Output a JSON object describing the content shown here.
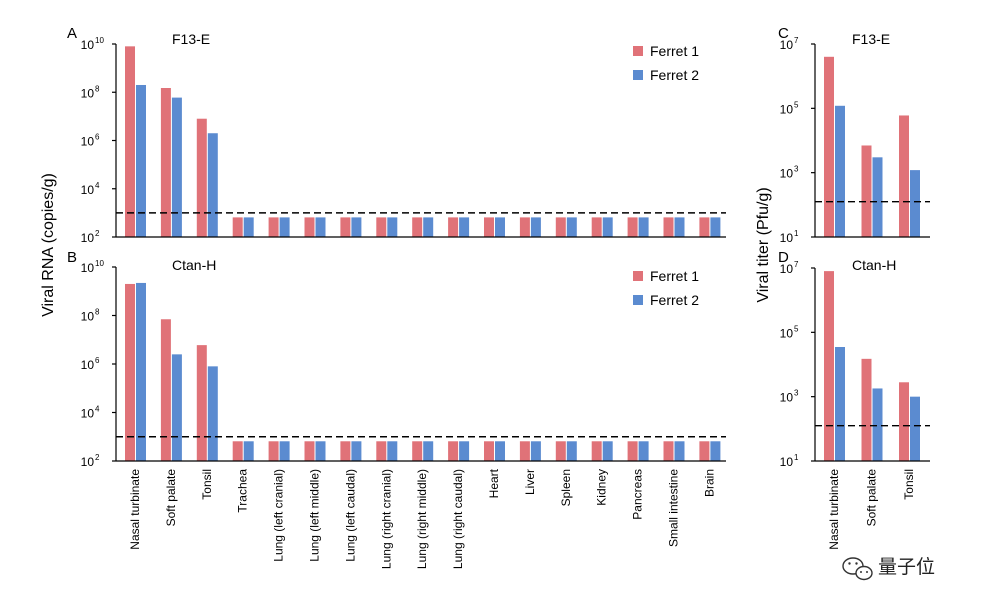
{
  "watermark": {
    "text": "量子位",
    "icon": "wechat-icon"
  },
  "colors": {
    "ferret1": "#e07278",
    "ferret2": "#5b8bd0"
  },
  "left_ylabel": "Viral RNA (copies/g)",
  "right_ylabel": "Viral titer (Pfu/g)",
  "chart_data": [
    {
      "panel": "A",
      "title": "F13-E",
      "type": "bar",
      "scale": "log10",
      "ylim": [
        100,
        10000000000
      ],
      "yticks": [
        {
          "base": "10",
          "exp": "10"
        },
        {
          "base": "10",
          "exp": "8"
        },
        {
          "base": "10",
          "exp": "6"
        },
        {
          "base": "10",
          "exp": "4"
        },
        {
          "base": "10",
          "exp": "2"
        }
      ],
      "ytick_values": [
        10000000000,
        100000000,
        1000000,
        10000,
        100
      ],
      "detection_limit": 1000,
      "legend_position": "top-right",
      "categories": [
        "Nasal turbinate",
        "Soft palate",
        "Tonsil",
        "Trachea",
        "Lung (left cranial)",
        "Lung (left middle)",
        "Lung (left caudal)",
        "Lung (right cranial)",
        "Lung (right middle)",
        "Lung (right caudal)",
        "Heart",
        "Liver",
        "Spleen",
        "Kidney",
        "Pancreas",
        "Small intestine",
        "Brain"
      ],
      "series": [
        {
          "name": "Ferret 1",
          "values": [
            8000000000,
            150000000,
            8000000,
            650,
            650,
            650,
            650,
            650,
            650,
            650,
            650,
            650,
            650,
            650,
            650,
            650,
            650
          ]
        },
        {
          "name": "Ferret 2",
          "values": [
            200000000,
            60000000,
            2000000,
            650,
            650,
            650,
            650,
            650,
            650,
            650,
            650,
            650,
            650,
            650,
            650,
            650,
            650
          ]
        }
      ]
    },
    {
      "panel": "B",
      "title": "Ctan-H",
      "type": "bar",
      "scale": "log10",
      "ylim": [
        100,
        10000000000
      ],
      "yticks": [
        {
          "base": "10",
          "exp": "10"
        },
        {
          "base": "10",
          "exp": "8"
        },
        {
          "base": "10",
          "exp": "6"
        },
        {
          "base": "10",
          "exp": "4"
        },
        {
          "base": "10",
          "exp": "2"
        }
      ],
      "ytick_values": [
        10000000000,
        100000000,
        1000000,
        10000,
        100
      ],
      "detection_limit": 1000,
      "legend_position": "top-right",
      "categories": [
        "Nasal turbinate",
        "Soft palate",
        "Tonsil",
        "Trachea",
        "Lung (left cranial)",
        "Lung (left middle)",
        "Lung (left caudal)",
        "Lung (right cranial)",
        "Lung (right middle)",
        "Lung (right caudal)",
        "Heart",
        "Liver",
        "Spleen",
        "Kidney",
        "Pancreas",
        "Small intestine",
        "Brain"
      ],
      "series": [
        {
          "name": "Ferret 1",
          "values": [
            2000000000,
            70000000,
            6000000,
            650,
            650,
            650,
            650,
            650,
            650,
            650,
            650,
            650,
            650,
            650,
            650,
            650,
            650
          ]
        },
        {
          "name": "Ferret 2",
          "values": [
            2200000000,
            2500000,
            800000,
            650,
            650,
            650,
            650,
            650,
            650,
            650,
            650,
            650,
            650,
            650,
            650,
            650,
            650
          ]
        }
      ]
    },
    {
      "panel": "C",
      "title": "F13-E",
      "type": "bar",
      "scale": "log10",
      "ylim": [
        10,
        10000000
      ],
      "yticks": [
        {
          "base": "10",
          "exp": "7"
        },
        {
          "base": "10",
          "exp": "5"
        },
        {
          "base": "10",
          "exp": "3"
        },
        {
          "base": "10",
          "exp": "1"
        }
      ],
      "ytick_values": [
        10000000,
        100000,
        1000,
        10
      ],
      "detection_limit": 125,
      "categories": [
        "Nasal turbinate",
        "Soft palate",
        "Tonsil"
      ],
      "series": [
        {
          "name": "Ferret 1",
          "values": [
            4000000,
            7000,
            60000
          ]
        },
        {
          "name": "Ferret 2",
          "values": [
            120000,
            3000,
            1200
          ]
        }
      ]
    },
    {
      "panel": "D",
      "title": "Ctan-H",
      "type": "bar",
      "scale": "log10",
      "ylim": [
        10,
        10000000
      ],
      "yticks": [
        {
          "base": "10",
          "exp": "7"
        },
        {
          "base": "10",
          "exp": "5"
        },
        {
          "base": "10",
          "exp": "3"
        },
        {
          "base": "10",
          "exp": "1"
        }
      ],
      "ytick_values": [
        10000000,
        100000,
        1000,
        10
      ],
      "detection_limit": 125,
      "categories": [
        "Nasal turbinate",
        "Soft palate",
        "Tonsil"
      ],
      "series": [
        {
          "name": "Ferret 1",
          "values": [
            8000000,
            15000,
            2800
          ]
        },
        {
          "name": "Ferret 2",
          "values": [
            35000,
            1800,
            1000
          ]
        }
      ]
    }
  ]
}
